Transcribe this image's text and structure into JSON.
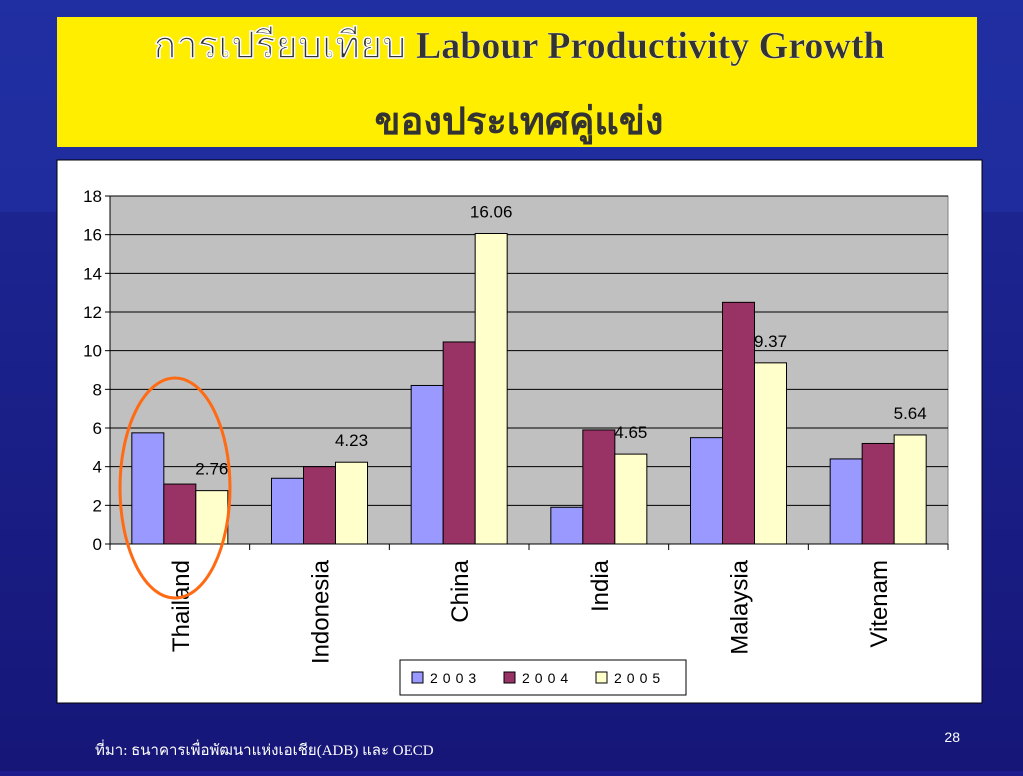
{
  "title_lines": [
    "การเปรียบเทียบ Labour Productivity Growth",
    "ของประเทศคู่แข่ง"
  ],
  "chart_data": {
    "type": "bar",
    "categories": [
      "Thailand",
      "Indonesia",
      "China",
      "India",
      "Malaysia",
      "Vitenam"
    ],
    "series": [
      {
        "name": "2003",
        "color": "#9999ff",
        "values": [
          5.75,
          3.4,
          8.2,
          1.9,
          5.5,
          4.4
        ]
      },
      {
        "name": "2004",
        "color": "#993366",
        "values": [
          3.1,
          4.0,
          10.45,
          5.9,
          12.5,
          5.2
        ]
      },
      {
        "name": "2005",
        "color": "#ffffcc",
        "values": [
          2.76,
          4.23,
          16.06,
          4.65,
          9.37,
          5.64
        ],
        "data_labels": true
      }
    ],
    "ylim": [
      0,
      18
    ],
    "yticks": [
      0,
      2,
      4,
      6,
      8,
      10,
      12,
      14,
      16,
      18
    ],
    "grid": true,
    "legend": "bottom"
  },
  "footer": {
    "source": "ที่มา: ธนาคารเพื่อพัฒนาแห่งเอเชีย(ADB) และ OECD",
    "page": "28"
  }
}
